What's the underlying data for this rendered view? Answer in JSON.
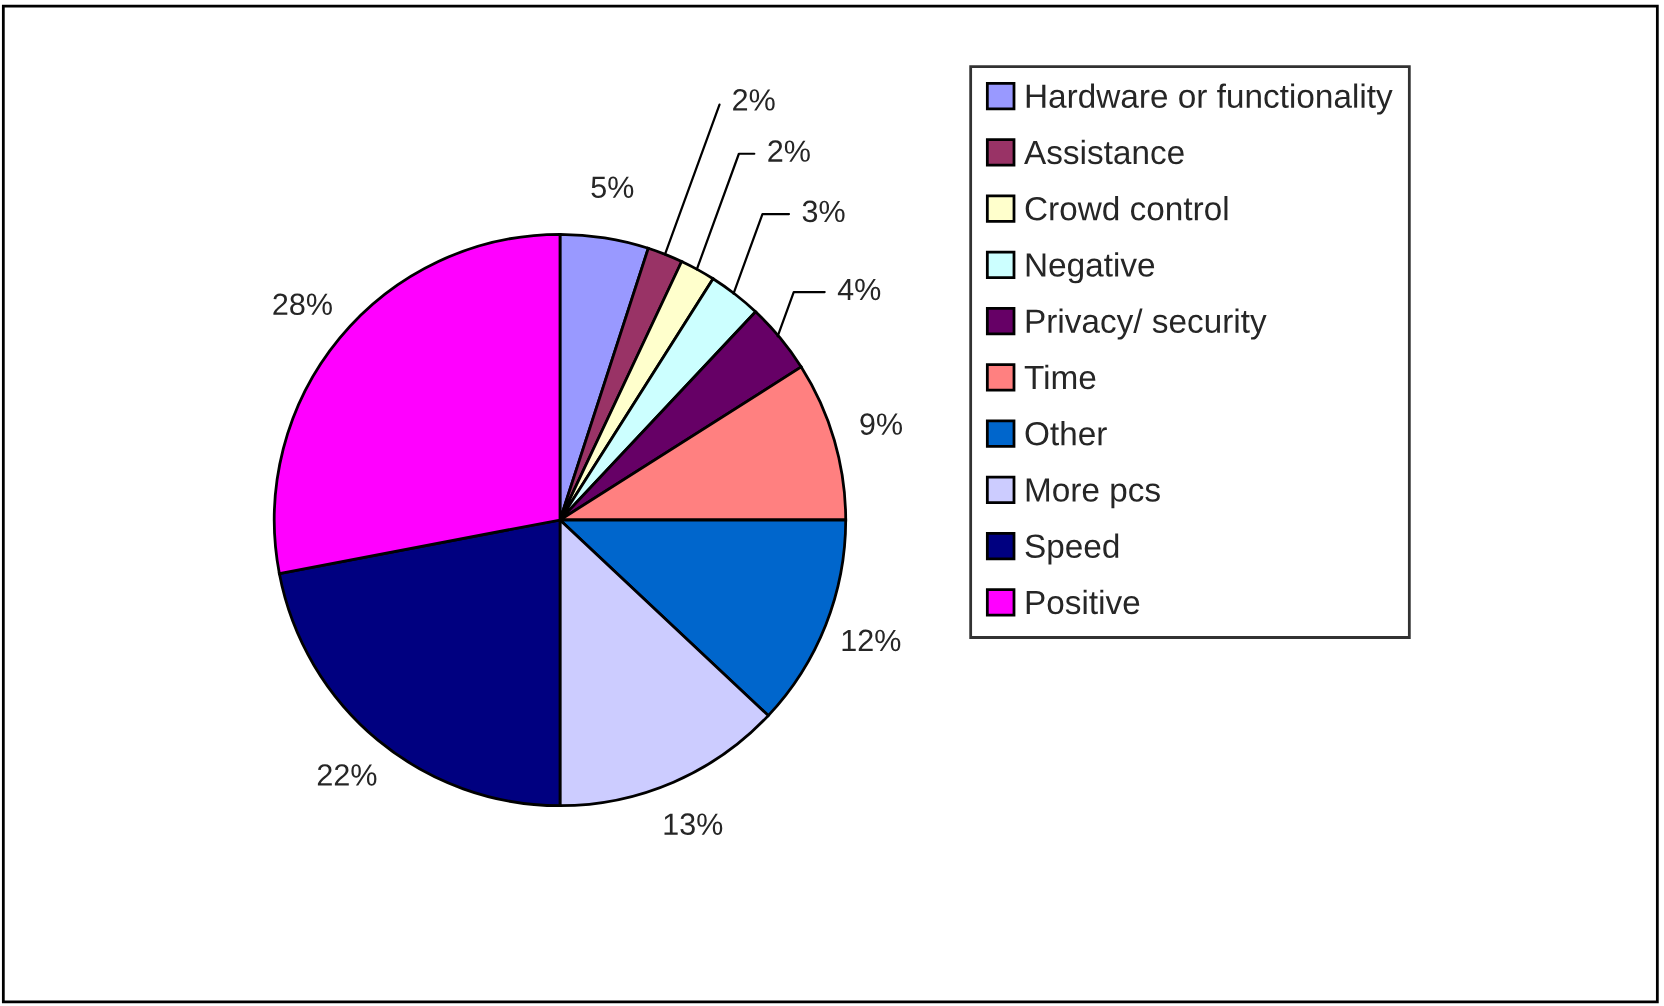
{
  "chart_data": {
    "type": "pie",
    "categories": [
      "Hardware or functionality",
      "Assistance",
      "Crowd control",
      "Negative",
      "Privacy/ security",
      "Time",
      "Other",
      "More pcs",
      "Speed",
      "Positive"
    ],
    "values": [
      5,
      2,
      2,
      3,
      4,
      9,
      12,
      13,
      22,
      28
    ],
    "colors": [
      "#9999ff",
      "#993366",
      "#ffffcc",
      "#ccffff",
      "#660066",
      "#ff8080",
      "#0066cc",
      "#ccccff",
      "#000080",
      "#ff00ff"
    ],
    "value_labels": [
      "5%",
      "2%",
      "2%",
      "3%",
      "4%",
      "9%",
      "12%",
      "13%",
      "22%",
      "28%"
    ],
    "legend": "right"
  }
}
